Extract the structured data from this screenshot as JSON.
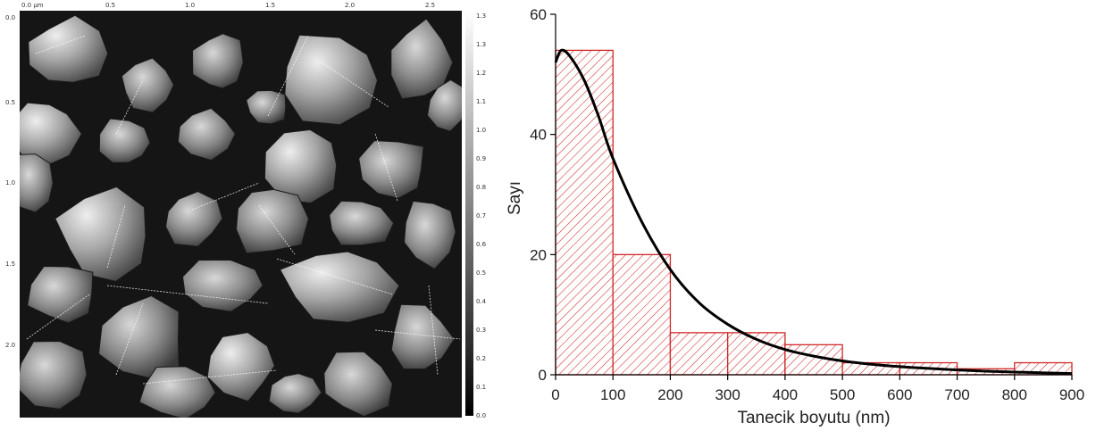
{
  "sem_image": {
    "scale_unit": "µm",
    "top_axis_labels": [
      "0.0 µm",
      "0.5",
      "1.0",
      "1.5",
      "2.0",
      "2.5"
    ],
    "left_axis_labels": [
      "0.0",
      "0.5",
      "1.0",
      "1.5",
      "2.0"
    ],
    "colorbar_labels": [
      "1.3",
      "1.3",
      "1.2",
      "1.1",
      "1.0",
      "0.9",
      "0.8",
      "0.7",
      "0.6",
      "0.5",
      "0.4",
      "0.3",
      "0.2",
      "0.1",
      "0.0"
    ]
  },
  "chart_data": {
    "type": "bar",
    "subtype": "histogram-with-fitted-curve",
    "xlabel": "Tanecik boyutu (nm)",
    "ylabel": "Sayı",
    "xlim": [
      0,
      900
    ],
    "ylim": [
      0,
      60
    ],
    "xticks": [
      0,
      100,
      200,
      300,
      400,
      500,
      600,
      700,
      800,
      900
    ],
    "yticks": [
      0,
      20,
      40,
      60
    ],
    "bins": [
      {
        "from": 0,
        "to": 100,
        "count": 54
      },
      {
        "from": 100,
        "to": 200,
        "count": 20
      },
      {
        "from": 200,
        "to": 300,
        "count": 7
      },
      {
        "from": 300,
        "to": 400,
        "count": 7
      },
      {
        "from": 400,
        "to": 500,
        "count": 5
      },
      {
        "from": 500,
        "to": 600,
        "count": 2
      },
      {
        "from": 600,
        "to": 700,
        "count": 2
      },
      {
        "from": 700,
        "to": 800,
        "count": 1
      },
      {
        "from": 800,
        "to": 900,
        "count": 2
      }
    ],
    "fit_curve": {
      "x": [
        0,
        10,
        25,
        50,
        75,
        100,
        150,
        200,
        250,
        300,
        350,
        400,
        450,
        500,
        550,
        600,
        650,
        700,
        750,
        800,
        850,
        900
      ],
      "y": [
        52,
        54,
        53,
        49,
        43,
        36,
        25.5,
        17.5,
        12,
        8.4,
        5.9,
        4.2,
        3.1,
        2.3,
        1.75,
        1.35,
        1.05,
        0.8,
        0.6,
        0.45,
        0.32,
        0.2
      ]
    },
    "bar_fill": "hatched",
    "bar_color": "#d02828",
    "curve_color": "#000000",
    "grid": false
  }
}
